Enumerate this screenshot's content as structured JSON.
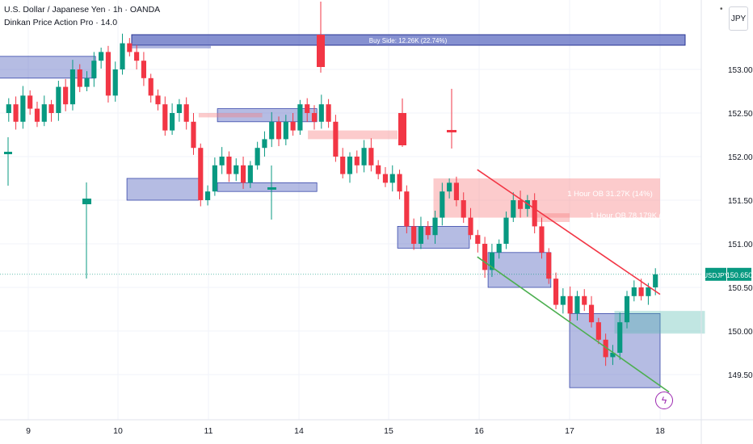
{
  "header": {
    "title": "U.S. Dollar / Japanese Yen · 1h · OANDA",
    "indicator": "Dinkan Price Action Pro · 14.0",
    "currency": "JPY"
  },
  "price_tag": {
    "symbol": "USDJPY",
    "price": "150.650"
  },
  "annotations": {
    "buy_side": "Buy Side: 12.26K (22.74%)",
    "ob1": "1 Hour OB 31.27K (14%)",
    "ob2": "1 Hour OB 78.179K (45%"
  },
  "colors": {
    "up": "#089981",
    "down": "#f23645",
    "blue_box": "#5c6bc0",
    "red_box": "#f77c80",
    "green_box": "#4db6ac",
    "trend_red": "#f23645",
    "trend_green": "#4caf50"
  },
  "chart_data": {
    "type": "candlestick",
    "title": "U.S. Dollar / Japanese Yen · 1h · OANDA",
    "x_ticks": [
      "9",
      "10",
      "11",
      "14",
      "15",
      "16",
      "17",
      "18"
    ],
    "y_ticks": [
      "153.000",
      "152.500",
      "152.000",
      "151.500",
      "151.000",
      "150.500",
      "150.000",
      "149.500"
    ],
    "ylim": [
      149.25,
      153.75
    ],
    "grid": true,
    "last_price": 150.65,
    "close_path": [
      152.5,
      152.6,
      152.4,
      152.7,
      152.55,
      152.4,
      152.6,
      152.5,
      152.8,
      152.6,
      153.0,
      152.8,
      152.9,
      153.1,
      153.2,
      152.7,
      153.0,
      153.3,
      153.2,
      153.1,
      152.9,
      152.7,
      152.6,
      152.3,
      152.5,
      152.6,
      152.4,
      152.1,
      151.5,
      151.6,
      151.9,
      152.0,
      151.8,
      151.9,
      151.7,
      151.9,
      152.1,
      152.2,
      152.4,
      152.2,
      152.4,
      152.3,
      152.6,
      152.5,
      152.4,
      152.6,
      152.4,
      152.0,
      151.8,
      152.0,
      151.9,
      152.1,
      151.9,
      151.8,
      151.7,
      151.8,
      151.6,
      151.2,
      151.0,
      151.2,
      151.1,
      151.3,
      151.6,
      151.7,
      151.5,
      151.3,
      151.1,
      151.0,
      150.7,
      150.9,
      151.0,
      151.3,
      151.5,
      151.4,
      151.5,
      151.2,
      150.9,
      150.6,
      150.3,
      150.4,
      150.2,
      150.4,
      150.3,
      150.1,
      149.9,
      149.7,
      149.75,
      150.1,
      150.4,
      150.5,
      150.4,
      150.5,
      150.65
    ],
    "zones": {
      "blue": [
        {
          "x0": "day 8.6",
          "x1": "day 9.75",
          "y0": 152.9,
          "y1": 153.15
        },
        {
          "x0": "day 10.1",
          "x1": "day 10.9",
          "y0": 151.5,
          "y1": 151.75
        },
        {
          "x0": "day 13.1",
          "x1": "day 14.2",
          "y0": 152.4,
          "y1": 152.55
        },
        {
          "x0": "day 13.1",
          "x1": "day 14.2",
          "y0": 151.6,
          "y1": 151.7
        },
        {
          "x0": "day 15.1",
          "x1": "day 15.9",
          "y0": 150.95,
          "y1": 151.2
        },
        {
          "x0": "day 16.1",
          "x1": "day 16.8",
          "y0": 150.5,
          "y1": 150.9
        },
        {
          "x0": "day 17.0",
          "x1": "day 18.0",
          "y0": 149.35,
          "y1": 150.2
        }
      ],
      "red": [
        {
          "x0": "day 10.9",
          "x1": "day 11.6",
          "y0": 152.45,
          "y1": 152.5
        },
        {
          "x0": "day 14.1",
          "x1": "day 15.1",
          "y0": 152.2,
          "y1": 152.3
        },
        {
          "x0": "day 15.5",
          "x1": "day 18.0",
          "y0": 151.3,
          "y1": 151.75
        },
        {
          "x0": "day 16.6",
          "x1": "day 17.0",
          "y0": 151.25,
          "y1": 151.35
        }
      ],
      "green": [
        {
          "x0": "day 17.5",
          "x1": "day 18.5",
          "y0": 149.97,
          "y1": 150.23
        }
      ]
    },
    "trendlines": [
      {
        "color": "red",
        "from": [
          15.98,
          151.85
        ],
        "to": [
          18.0,
          150.42
        ]
      },
      {
        "color": "green",
        "from": [
          15.98,
          150.85
        ],
        "to": [
          18.1,
          149.3
        ]
      }
    ]
  }
}
